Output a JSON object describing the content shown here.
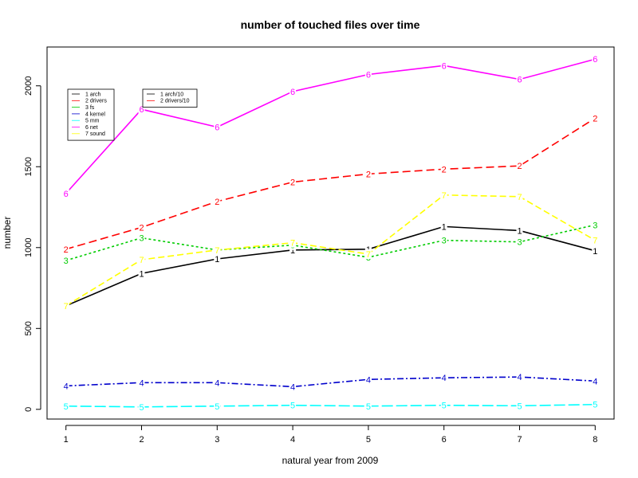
{
  "chart_data": {
    "type": "line",
    "title": "number of touched files over time",
    "xlabel": "natural year from 2009",
    "ylabel": "number",
    "x": [
      1,
      2,
      3,
      4,
      5,
      6,
      7,
      8
    ],
    "xticks": [
      "1",
      "2",
      "3",
      "4",
      "5",
      "6",
      "7",
      "8"
    ],
    "yticks": [
      "0",
      "500",
      "1000",
      "1500",
      "2000"
    ],
    "xlim": [
      0.75,
      8.25
    ],
    "ylim": [
      -60,
      2240
    ],
    "grid": false,
    "legend_placement": "top-left",
    "series": [
      {
        "name": "1 arch/10",
        "marker": "1",
        "color": "#000000",
        "dash": "solid",
        "values": [
          640,
          840,
          930,
          985,
          990,
          1130,
          1105,
          980
        ]
      },
      {
        "name": "2 drivers/10",
        "marker": "2",
        "color": "#ff0000",
        "dash": "10,5",
        "values": [
          990,
          1125,
          1285,
          1405,
          1455,
          1485,
          1505,
          1800
        ]
      },
      {
        "name": "3 fs",
        "marker": "3",
        "color": "#00cc00",
        "dash": "3,3",
        "values": [
          920,
          1060,
          985,
          1015,
          940,
          1045,
          1035,
          1140
        ]
      },
      {
        "name": "4 kernel",
        "marker": "4",
        "color": "#0000cc",
        "dash": "8,3,2,3",
        "values": [
          145,
          165,
          165,
          140,
          185,
          195,
          200,
          175
        ]
      },
      {
        "name": "5 mm",
        "marker": "5",
        "color": "#00ffff",
        "dash": "14,4",
        "values": [
          20,
          15,
          20,
          25,
          20,
          25,
          22,
          30
        ]
      },
      {
        "name": "6 net",
        "marker": "6",
        "color": "#ff00ff",
        "dash": "solid",
        "values": [
          1335,
          1855,
          1745,
          1965,
          2070,
          2125,
          2040,
          2165
        ]
      },
      {
        "name": "7 sound",
        "marker": "7",
        "color": "#ffff00",
        "dash": "8,4",
        "values": [
          640,
          925,
          985,
          1030,
          960,
          1325,
          1315,
          1045
        ]
      }
    ],
    "legend1": [
      "1 arch",
      "2 drivers",
      "3 fs",
      "4 kernel",
      "5 mm",
      "6 net",
      "7 sound"
    ],
    "legend1_colors": [
      "#000000",
      "#ff0000",
      "#00cc00",
      "#0000cc",
      "#00ffff",
      "#ff00ff",
      "#ffff00"
    ],
    "legend2": [
      "1 arch/10",
      "2 drivers/10"
    ],
    "legend2_colors": [
      "#000000",
      "#ff0000"
    ]
  }
}
